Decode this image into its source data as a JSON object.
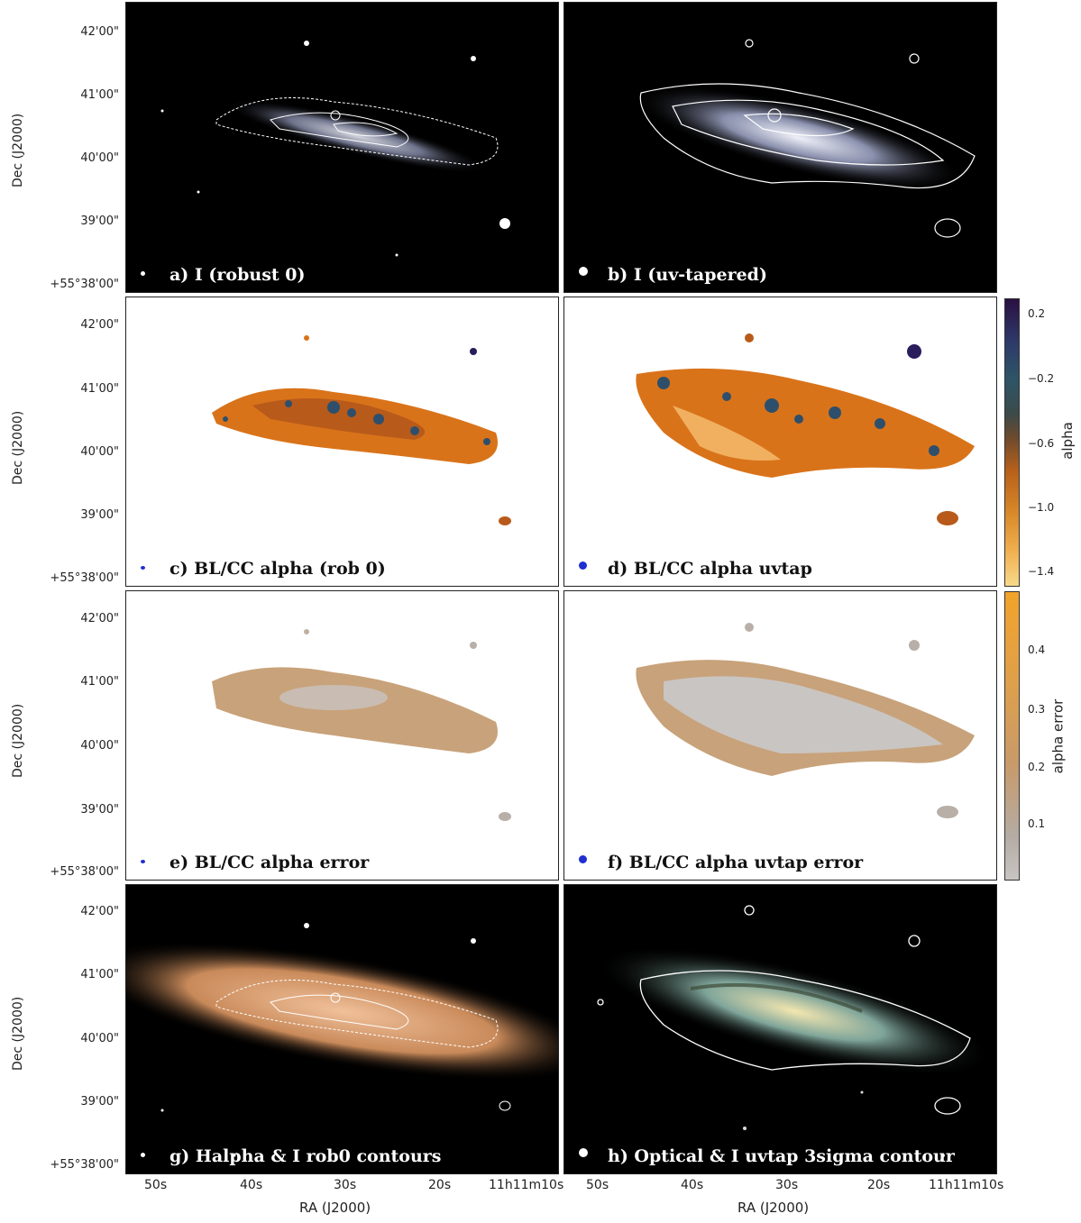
{
  "panels": {
    "a": "a) I (robust 0)",
    "b": "b) I (uv-tapered)",
    "c": "c) BL/CC alpha (rob 0)",
    "d": "d) BL/CC alpha uvtap",
    "e": "e)  BL/CC alpha error",
    "f": "f) BL/CC alpha uvtap error",
    "g": "g) Halpha & I rob0 contours",
    "h": "h) Optical & I uvtap 3sigma contour"
  },
  "axes": {
    "ylabel": "Dec (J2000)",
    "xlabel": "RA (J2000)",
    "yticks": [
      "42'00\"",
      "41'00\"",
      "40'00\"",
      "39'00\"",
      "+55°38'00\""
    ],
    "xticks": [
      "50s",
      "40s",
      "30s",
      "20s",
      "11h11m10s"
    ]
  },
  "colorbars": {
    "alpha": {
      "label": "alpha",
      "ticks": [
        "0.2",
        "−0.2",
        "−0.6",
        "−1.0",
        "−1.4"
      ]
    },
    "alpha_error": {
      "label": "alpha error",
      "ticks": [
        "0.4",
        "0.3",
        "0.2",
        "0.1"
      ]
    }
  },
  "colors": {
    "dark_bg": "#000000",
    "contour": "#ffffff",
    "alpha_orange": "#d9731a",
    "alpha_blue": "#2e4f6b",
    "error_tan": "#c8a27a",
    "halpha": "#c98a5a",
    "beam_blue": "#1f2fd0"
  }
}
